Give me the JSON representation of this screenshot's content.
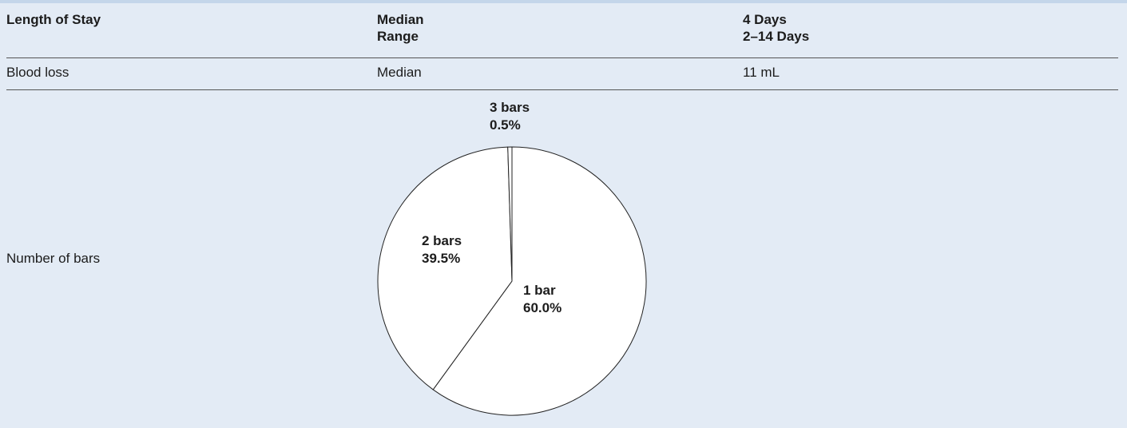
{
  "table": {
    "header": {
      "col1": "Length of Stay",
      "col2_line1": "Median",
      "col2_line2": "Range",
      "col3_line1": "4 Days",
      "col3_line2": "2–14 Days"
    },
    "rows": [
      {
        "label": "Blood loss",
        "stat": "Median",
        "value": "11 mL"
      },
      {
        "label": "Number of bars"
      }
    ]
  },
  "chart_data": {
    "type": "pie",
    "slices": [
      {
        "label": "1 bar",
        "value": 60.0,
        "display": "60.0%"
      },
      {
        "label": "2 bars",
        "value": 39.5,
        "display": "39.5%"
      },
      {
        "label": "3 bars",
        "value": 0.5,
        "display": "0.5%"
      }
    ],
    "start_angle_deg": 0,
    "direction": "clockwise",
    "fill_color": "#ffffff",
    "stroke_color": "#222222",
    "background": "#e3ebf5"
  }
}
